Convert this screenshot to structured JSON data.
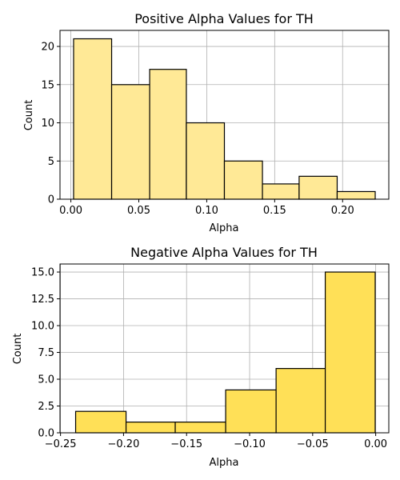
{
  "chart_data": [
    {
      "type": "bar",
      "title": "Positive Alpha Values for TH",
      "xlabel": "Alpha",
      "ylabel": "Count",
      "xlim": [
        -0.008,
        0.234
      ],
      "ylim": [
        0,
        22.1
      ],
      "grid": true,
      "bar_color": "#ffe996",
      "edge_color": "#000000",
      "xticks": [
        {
          "v": 0.0,
          "label": "0.00"
        },
        {
          "v": 0.05,
          "label": "0.05"
        },
        {
          "v": 0.1,
          "label": "0.10"
        },
        {
          "v": 0.15,
          "label": "0.15"
        },
        {
          "v": 0.2,
          "label": "0.20"
        }
      ],
      "yticks": [
        {
          "v": 0,
          "label": "0"
        },
        {
          "v": 5,
          "label": "5"
        },
        {
          "v": 10,
          "label": "10"
        },
        {
          "v": 15,
          "label": "15"
        },
        {
          "v": 20,
          "label": "20"
        }
      ],
      "bins": [
        {
          "x0": 0.002,
          "x1": 0.03,
          "value": 21
        },
        {
          "x0": 0.03,
          "x1": 0.058,
          "value": 15
        },
        {
          "x0": 0.058,
          "x1": 0.085,
          "value": 17
        },
        {
          "x0": 0.085,
          "x1": 0.113,
          "value": 10
        },
        {
          "x0": 0.113,
          "x1": 0.141,
          "value": 5
        },
        {
          "x0": 0.141,
          "x1": 0.168,
          "value": 2
        },
        {
          "x0": 0.168,
          "x1": 0.196,
          "value": 3
        },
        {
          "x0": 0.196,
          "x1": 0.224,
          "value": 1
        }
      ]
    },
    {
      "type": "bar",
      "title": "Negative Alpha Values for TH",
      "xlabel": "Alpha",
      "ylabel": "Count",
      "xlim": [
        -0.2504,
        0.0104
      ],
      "ylim": [
        0,
        15.75
      ],
      "grid": true,
      "bar_color": "#ffe057",
      "edge_color": "#000000",
      "xticks": [
        {
          "v": -0.25,
          "label": "−0.25"
        },
        {
          "v": -0.2,
          "label": "−0.20"
        },
        {
          "v": -0.15,
          "label": "−0.15"
        },
        {
          "v": -0.1,
          "label": "−0.10"
        },
        {
          "v": -0.05,
          "label": "−0.05"
        },
        {
          "v": 0.0,
          "label": "0.00"
        }
      ],
      "yticks": [
        {
          "v": 0,
          "label": "0.0"
        },
        {
          "v": 2.5,
          "label": "2.5"
        },
        {
          "v": 5.0,
          "label": "5.0"
        },
        {
          "v": 7.5,
          "label": "7.5"
        },
        {
          "v": 10.0,
          "label": "10.0"
        },
        {
          "v": 12.5,
          "label": "12.5"
        },
        {
          "v": 15.0,
          "label": "15.0"
        }
      ],
      "bins": [
        {
          "x0": -0.238,
          "x1": -0.198,
          "value": 2
        },
        {
          "x0": -0.198,
          "x1": -0.159,
          "value": 1
        },
        {
          "x0": -0.159,
          "x1": -0.119,
          "value": 1
        },
        {
          "x0": -0.119,
          "x1": -0.079,
          "value": 4
        },
        {
          "x0": -0.079,
          "x1": -0.04,
          "value": 6
        },
        {
          "x0": -0.04,
          "x1": -0.0004,
          "value": 15
        }
      ]
    }
  ]
}
